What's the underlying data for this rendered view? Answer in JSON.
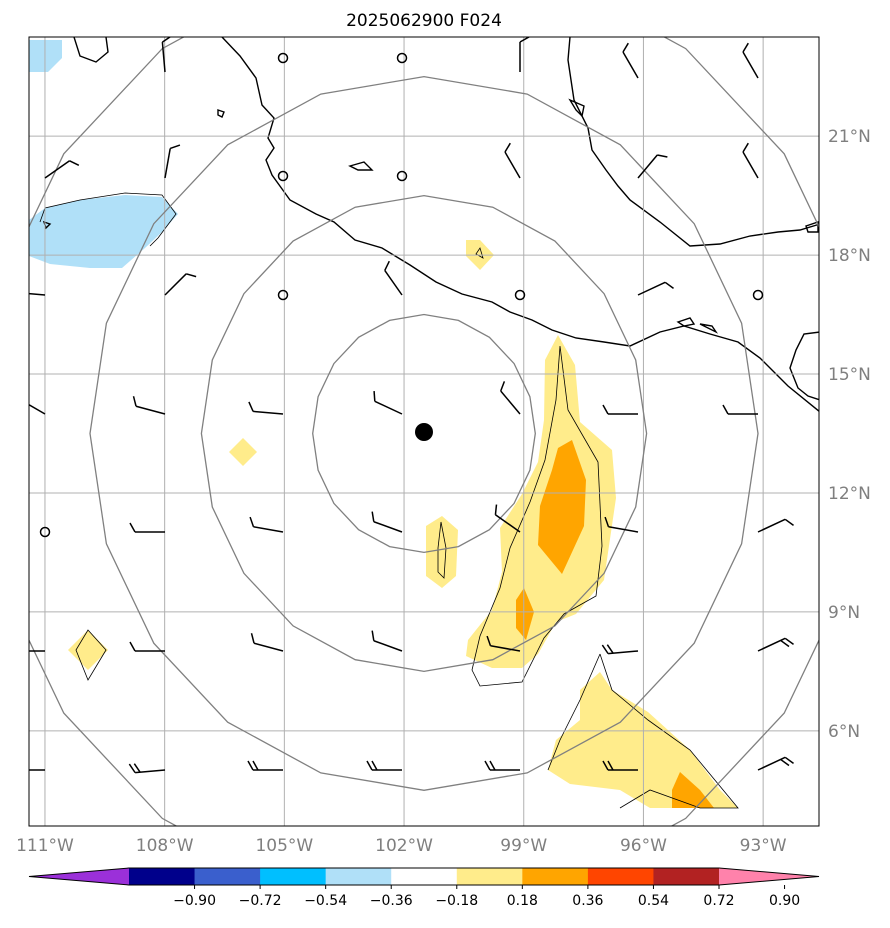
{
  "title": "2025062900 F024",
  "lon_labels": [
    "111°W",
    "108°W",
    "105°W",
    "102°W",
    "99°W",
    "96°W",
    "93°W"
  ],
  "lon_values": [
    -111,
    -108,
    -105,
    -102,
    -99,
    -96,
    -93
  ],
  "lat_labels": [
    "21°N",
    "18°N",
    "15°N",
    "12°N",
    "9°N",
    "6°N"
  ],
  "lat_values": [
    21,
    18,
    15,
    12,
    9,
    6
  ],
  "map_extent": {
    "lon_min": -111.4,
    "lon_max": -91.6,
    "lat_min": 3.6,
    "lat_max": 23.5
  },
  "center": {
    "lon": -101.5,
    "lat": 13.5
  },
  "range_rings_deg": [
    3,
    6,
    9,
    12
  ],
  "colorbar": {
    "tick_labels": [
      "−0.90",
      "−0.72",
      "−0.54",
      "−0.36",
      "−0.18",
      "0.18",
      "0.36",
      "0.54",
      "0.72",
      "0.90"
    ],
    "colors": [
      "#9b30d9",
      "#00008b",
      "#3a5fcd",
      "#00bfff",
      "#b0e0f8",
      "#ffffff",
      "#ffec8b",
      "#ffa500",
      "#ff4500",
      "#b22222",
      "#ff82ab"
    ]
  },
  "colors": {
    "coast": "#000000",
    "grid": "#b0b0b0",
    "rings": "#808080",
    "neg_fill": "#b0e0f8",
    "pos_fill_1": "#ffec8b",
    "pos_fill_2": "#ffa500"
  }
}
